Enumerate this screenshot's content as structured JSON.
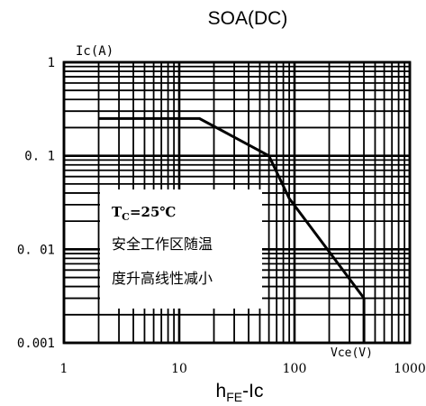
{
  "chart_data": {
    "type": "line",
    "title": "SOA(DC)",
    "xlabel": "h",
    "xlabel_sub": "FE",
    "xlabel_tail": "-Ic",
    "x_axis_unit_label": "Vce(V)",
    "y_axis_unit_label": "Ic(A)",
    "x_scale": "log",
    "y_scale": "log",
    "xlim": [
      1,
      1000
    ],
    "ylim": [
      0.001,
      1
    ],
    "x_ticks": [
      1,
      10,
      100,
      1000
    ],
    "x_tick_labels": [
      "1",
      "10",
      "100",
      "1000"
    ],
    "y_ticks": [
      0.001,
      0.01,
      0.1,
      1
    ],
    "y_tick_labels": [
      "0.001",
      "0. 01",
      "0. 1",
      "1"
    ],
    "grid": true,
    "series": [
      {
        "x": [
          2,
          15,
          60,
          90,
          400,
          400
        ],
        "y": [
          0.25,
          0.25,
          0.1,
          0.035,
          0.003,
          0.001
        ]
      }
    ],
    "annotation": {
      "tc_prefix": "T",
      "tc_sub": "C",
      "tc_suffix": "=25℃",
      "line2": "安全工作区随温",
      "line3": "度升高线性减小"
    }
  }
}
